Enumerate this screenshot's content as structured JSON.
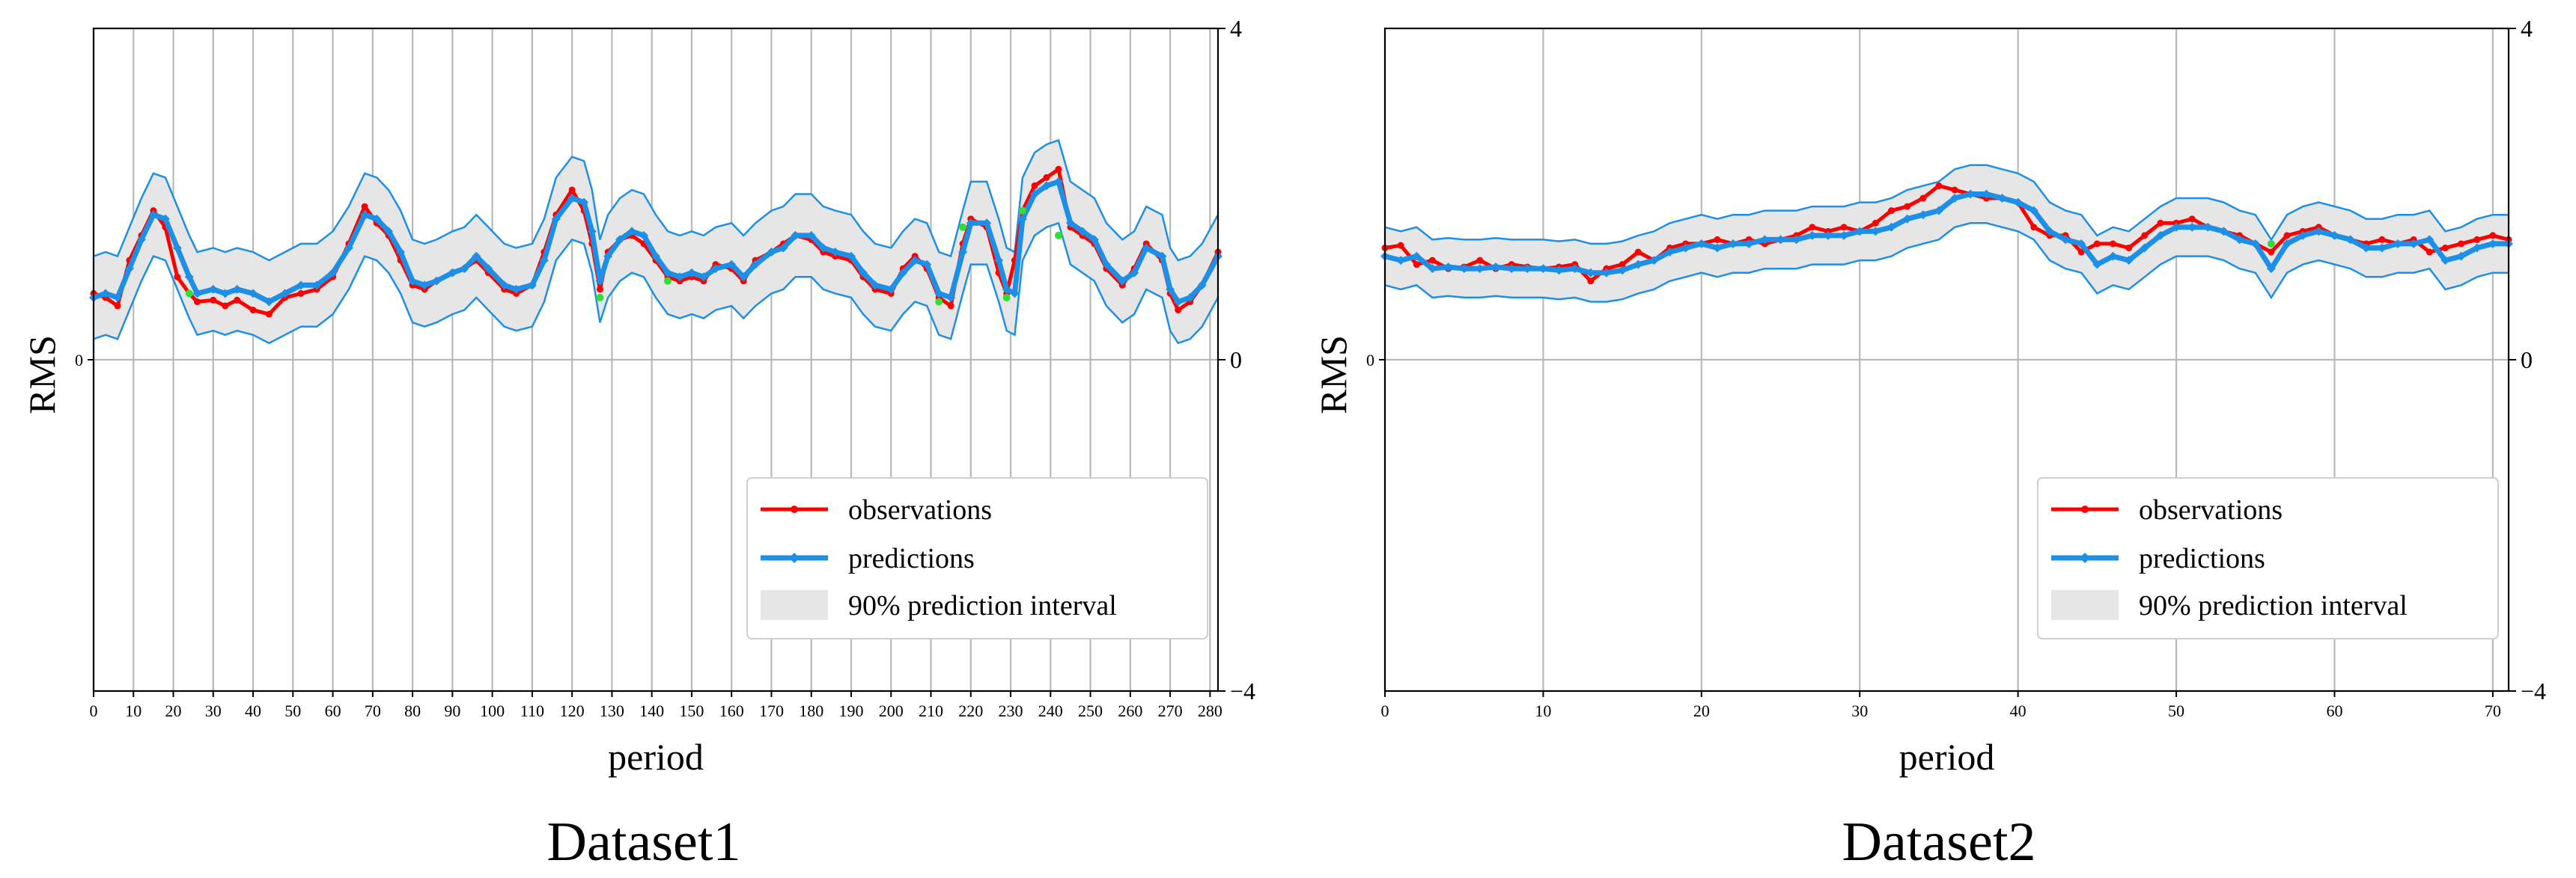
{
  "chart_data": [
    {
      "type": "line",
      "caption": "Dataset1",
      "xlabel": "period",
      "ylabel": "RMS",
      "xlim": [
        0,
        282
      ],
      "ylim": [
        -4,
        4
      ],
      "x_ticks": [
        0,
        10,
        20,
        30,
        40,
        50,
        60,
        70,
        80,
        90,
        100,
        110,
        120,
        130,
        140,
        150,
        160,
        170,
        180,
        190,
        200,
        210,
        220,
        230,
        240,
        250,
        260,
        270,
        280
      ],
      "x_tick_labels": [
        "0",
        "10",
        "20",
        "30",
        "40",
        "50",
        "60",
        "70",
        "80",
        "90",
        "100",
        "110",
        "120",
        "130",
        "140",
        "150",
        "160",
        "170",
        "180",
        "190",
        "200",
        "210",
        "220",
        "230",
        "240",
        "250",
        "260",
        "270",
        "280"
      ],
      "y_left_tick_labels": [
        "0"
      ],
      "y_right_ticks": [
        -4,
        0,
        4
      ],
      "y_right_tick_labels": [
        "−4",
        "0",
        "4"
      ],
      "grid": true,
      "legend": {
        "position": "lower-right",
        "entries": [
          "observations",
          "predictions",
          "90% prediction interval"
        ]
      },
      "series": [
        {
          "name": "observations",
          "color": "#ff0000",
          "x": [
            0,
            3,
            6,
            9,
            12,
            15,
            18,
            21,
            24,
            26,
            30,
            33,
            36,
            40,
            44,
            48,
            52,
            56,
            60,
            64,
            68,
            71,
            74,
            77,
            80,
            83,
            86,
            90,
            93,
            96,
            99,
            103,
            106,
            110,
            113,
            116,
            120,
            123,
            125,
            127,
            129,
            132,
            135,
            138,
            141,
            144,
            147,
            150,
            153,
            156,
            160,
            163,
            166,
            170,
            173,
            176,
            180,
            183,
            186,
            190,
            193,
            196,
            200,
            203,
            206,
            209,
            212,
            215,
            218,
            220,
            224,
            227,
            229,
            231,
            233,
            236,
            239,
            242,
            245,
            248,
            251,
            254,
            258,
            261,
            264,
            268,
            270,
            272,
            275,
            278,
            282
          ],
          "y": [
            0.8,
            0.75,
            0.65,
            1.2,
            1.5,
            1.8,
            1.6,
            1.0,
            0.8,
            0.7,
            0.72,
            0.65,
            0.72,
            0.6,
            0.55,
            0.75,
            0.8,
            0.85,
            1.0,
            1.4,
            1.85,
            1.65,
            1.5,
            1.2,
            0.9,
            0.85,
            0.95,
            1.05,
            1.1,
            1.2,
            1.05,
            0.85,
            0.8,
            0.9,
            1.3,
            1.75,
            2.05,
            1.8,
            1.4,
            0.85,
            1.3,
            1.45,
            1.5,
            1.4,
            1.2,
            1.0,
            0.95,
            1.0,
            0.95,
            1.15,
            1.1,
            0.95,
            1.2,
            1.3,
            1.4,
            1.5,
            1.45,
            1.3,
            1.25,
            1.2,
            1.0,
            0.85,
            0.8,
            1.1,
            1.25,
            1.1,
            0.75,
            0.65,
            1.4,
            1.7,
            1.6,
            1.05,
            0.8,
            1.2,
            1.8,
            2.1,
            2.2,
            2.3,
            1.6,
            1.5,
            1.4,
            1.1,
            0.9,
            1.1,
            1.4,
            1.2,
            0.8,
            0.6,
            0.7,
            0.9,
            1.3
          ]
        },
        {
          "name": "predictions",
          "color": "#1e8fe6",
          "x": [
            0,
            3,
            6,
            9,
            12,
            15,
            18,
            21,
            24,
            26,
            30,
            33,
            36,
            40,
            44,
            48,
            52,
            56,
            60,
            64,
            68,
            71,
            74,
            77,
            80,
            83,
            86,
            90,
            93,
            96,
            99,
            103,
            106,
            110,
            113,
            116,
            120,
            123,
            125,
            127,
            129,
            132,
            135,
            138,
            141,
            144,
            147,
            150,
            153,
            156,
            160,
            163,
            166,
            170,
            173,
            176,
            180,
            183,
            186,
            190,
            193,
            196,
            200,
            203,
            206,
            209,
            212,
            215,
            218,
            220,
            224,
            227,
            229,
            231,
            233,
            236,
            239,
            242,
            245,
            248,
            251,
            254,
            258,
            261,
            264,
            268,
            270,
            272,
            275,
            278,
            282
          ],
          "y": [
            0.75,
            0.8,
            0.75,
            1.1,
            1.45,
            1.75,
            1.7,
            1.35,
            1.0,
            0.8,
            0.85,
            0.8,
            0.85,
            0.8,
            0.7,
            0.8,
            0.9,
            0.9,
            1.05,
            1.35,
            1.75,
            1.7,
            1.55,
            1.3,
            0.95,
            0.9,
            0.95,
            1.05,
            1.1,
            1.25,
            1.1,
            0.9,
            0.85,
            0.9,
            1.2,
            1.7,
            1.95,
            1.9,
            1.55,
            0.95,
            1.25,
            1.45,
            1.55,
            1.5,
            1.25,
            1.05,
            1.0,
            1.05,
            1.0,
            1.1,
            1.15,
            1.0,
            1.15,
            1.3,
            1.35,
            1.5,
            1.5,
            1.35,
            1.3,
            1.25,
            1.05,
            0.9,
            0.85,
            1.05,
            1.2,
            1.15,
            0.8,
            0.75,
            1.3,
            1.65,
            1.65,
            1.2,
            0.85,
            0.8,
            1.7,
            2.0,
            2.1,
            2.15,
            1.65,
            1.55,
            1.45,
            1.15,
            0.95,
            1.05,
            1.35,
            1.25,
            0.85,
            0.7,
            0.75,
            0.9,
            1.25
          ]
        }
      ],
      "interval": {
        "name": "90% prediction interval",
        "fill_color": "#e6e6e6",
        "line_color": "#1e8fe6",
        "half_width": 0.5
      },
      "highlight_points": {
        "color": "#33dd33",
        "x": [
          24,
          127,
          144,
          212,
          218,
          229,
          233,
          242
        ],
        "y": [
          0.8,
          0.75,
          0.95,
          0.7,
          1.6,
          0.75,
          1.8,
          1.5
        ]
      }
    },
    {
      "type": "line",
      "caption": "Dataset2",
      "xlabel": "period",
      "ylabel": "RMS",
      "xlim": [
        0,
        71
      ],
      "ylim": [
        -4,
        4
      ],
      "x_ticks": [
        0,
        10,
        20,
        30,
        40,
        50,
        60,
        70
      ],
      "x_tick_labels": [
        "0",
        "10",
        "20",
        "30",
        "40",
        "50",
        "60",
        "70"
      ],
      "y_left_tick_labels": [
        "0"
      ],
      "y_right_ticks": [
        -4,
        0,
        4
      ],
      "y_right_tick_labels": [
        "−4",
        "0",
        "4"
      ],
      "grid": true,
      "legend": {
        "position": "lower-right",
        "entries": [
          "observations",
          "predictions",
          "90% prediction interval"
        ]
      },
      "series": [
        {
          "name": "observations",
          "color": "#ff0000",
          "x": [
            0,
            1,
            2,
            3,
            4,
            5,
            6,
            7,
            8,
            9,
            10,
            11,
            12,
            13,
            14,
            15,
            16,
            17,
            18,
            19,
            20,
            21,
            22,
            23,
            24,
            25,
            26,
            27,
            28,
            29,
            30,
            31,
            32,
            33,
            34,
            35,
            36,
            37,
            38,
            39,
            40,
            41,
            42,
            43,
            44,
            45,
            46,
            47,
            48,
            49,
            50,
            51,
            52,
            53,
            54,
            55,
            56,
            57,
            58,
            59,
            60,
            61,
            62,
            63,
            64,
            65,
            66,
            67,
            68,
            69,
            70,
            71
          ],
          "y": [
            1.35,
            1.38,
            1.15,
            1.2,
            1.1,
            1.12,
            1.2,
            1.1,
            1.15,
            1.12,
            1.1,
            1.12,
            1.15,
            0.95,
            1.1,
            1.15,
            1.3,
            1.2,
            1.35,
            1.4,
            1.4,
            1.45,
            1.4,
            1.45,
            1.4,
            1.45,
            1.5,
            1.6,
            1.55,
            1.6,
            1.55,
            1.65,
            1.8,
            1.85,
            1.95,
            2.1,
            2.05,
            2.0,
            1.95,
            1.95,
            1.9,
            1.6,
            1.5,
            1.5,
            1.3,
            1.4,
            1.4,
            1.35,
            1.5,
            1.65,
            1.65,
            1.7,
            1.6,
            1.55,
            1.5,
            1.4,
            1.3,
            1.5,
            1.55,
            1.6,
            1.5,
            1.45,
            1.4,
            1.45,
            1.4,
            1.45,
            1.3,
            1.35,
            1.4,
            1.45,
            1.5,
            1.45
          ]
        },
        {
          "name": "predictions",
          "color": "#1e8fe6",
          "x": [
            0,
            1,
            2,
            3,
            4,
            5,
            6,
            7,
            8,
            9,
            10,
            11,
            12,
            13,
            14,
            15,
            16,
            17,
            18,
            19,
            20,
            21,
            22,
            23,
            24,
            25,
            26,
            27,
            28,
            29,
            30,
            31,
            32,
            33,
            34,
            35,
            36,
            37,
            38,
            39,
            40,
            41,
            42,
            43,
            44,
            45,
            46,
            47,
            48,
            49,
            50,
            51,
            52,
            53,
            54,
            55,
            56,
            57,
            58,
            59,
            60,
            61,
            62,
            63,
            64,
            65,
            66,
            67,
            68,
            69,
            70,
            71
          ],
          "y": [
            1.25,
            1.2,
            1.25,
            1.1,
            1.12,
            1.1,
            1.1,
            1.12,
            1.1,
            1.1,
            1.1,
            1.08,
            1.1,
            1.05,
            1.05,
            1.08,
            1.15,
            1.2,
            1.3,
            1.35,
            1.4,
            1.35,
            1.4,
            1.4,
            1.45,
            1.45,
            1.45,
            1.5,
            1.5,
            1.5,
            1.55,
            1.55,
            1.6,
            1.7,
            1.75,
            1.8,
            1.95,
            2.0,
            2.0,
            1.95,
            1.9,
            1.8,
            1.55,
            1.45,
            1.4,
            1.15,
            1.25,
            1.2,
            1.35,
            1.5,
            1.6,
            1.6,
            1.6,
            1.55,
            1.45,
            1.4,
            1.1,
            1.4,
            1.5,
            1.55,
            1.5,
            1.45,
            1.35,
            1.35,
            1.4,
            1.4,
            1.45,
            1.2,
            1.25,
            1.35,
            1.4,
            1.4
          ]
        }
      ],
      "interval": {
        "name": "90% prediction interval",
        "fill_color": "#e6e6e6",
        "line_color": "#1e8fe6",
        "half_width": 0.35
      },
      "highlight_points": {
        "color": "#33dd33",
        "x": [
          56
        ],
        "y": [
          1.4
        ]
      }
    }
  ]
}
